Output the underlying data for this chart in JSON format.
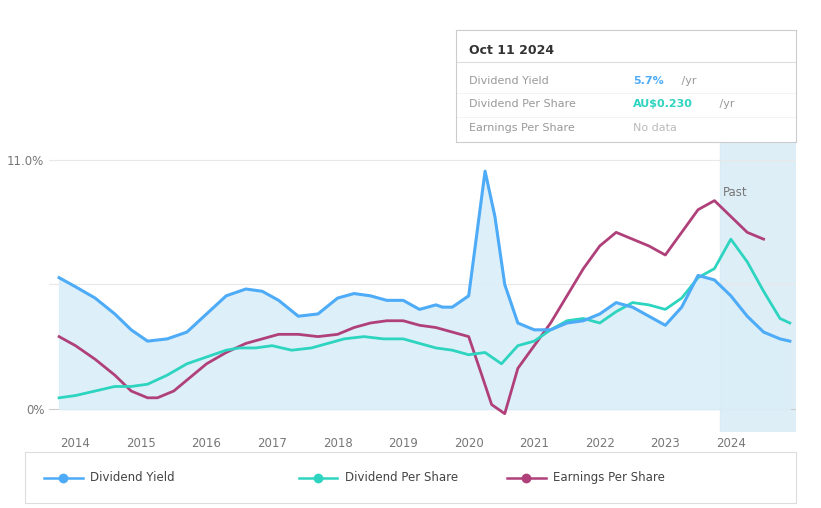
{
  "title": "Oct 11 2024",
  "tooltip_items": [
    {
      "label": "Dividend Yield",
      "value": "5.7%",
      "unit": " /yr",
      "color": "#4dabf7"
    },
    {
      "label": "Dividend Per Share",
      "value": "AU$0.230",
      "unit": " /yr",
      "color": "#2dd4bf"
    },
    {
      "label": "Earnings Per Share",
      "value": "No data",
      "unit": "",
      "color": "#aaaaaa"
    }
  ],
  "past_label": "Past",
  "past_start_x": 2023.83,
  "x_end": 2025.1,
  "background_color": "#ffffff",
  "fill_color": "#daeef8",
  "past_fill_color": "#d0e8f5",
  "grid_color": "#e8e8e8",
  "legend_items": [
    {
      "label": "Dividend Yield",
      "color": "#4dabf7"
    },
    {
      "label": "Dividend Per Share",
      "color": "#2dd4bf"
    },
    {
      "label": "Earnings Per Share",
      "color": "#b0407a"
    }
  ],
  "dividend_yield": {
    "x": [
      2013.75,
      2014.0,
      2014.3,
      2014.6,
      2014.85,
      2015.1,
      2015.4,
      2015.7,
      2016.0,
      2016.3,
      2016.6,
      2016.85,
      2017.1,
      2017.4,
      2017.7,
      2018.0,
      2018.25,
      2018.5,
      2018.75,
      2019.0,
      2019.25,
      2019.5,
      2019.6,
      2019.75,
      2020.0,
      2020.25,
      2020.4,
      2020.55,
      2020.75,
      2021.0,
      2021.25,
      2021.5,
      2021.75,
      2022.0,
      2022.25,
      2022.5,
      2022.75,
      2023.0,
      2023.25,
      2023.5,
      2023.75,
      2024.0,
      2024.25,
      2024.5,
      2024.75,
      2024.9
    ],
    "y": [
      5.8,
      5.4,
      4.9,
      4.2,
      3.5,
      3.0,
      3.1,
      3.4,
      4.2,
      5.0,
      5.3,
      5.2,
      4.8,
      4.1,
      4.2,
      4.9,
      5.1,
      5.0,
      4.8,
      4.8,
      4.4,
      4.6,
      4.5,
      4.5,
      5.0,
      10.5,
      8.5,
      5.5,
      3.8,
      3.5,
      3.5,
      3.8,
      3.9,
      4.2,
      4.7,
      4.5,
      4.1,
      3.7,
      4.5,
      5.9,
      5.7,
      5.0,
      4.1,
      3.4,
      3.1,
      3.0
    ]
  },
  "dividend_per_share": {
    "x": [
      2013.75,
      2014.0,
      2014.3,
      2014.6,
      2014.85,
      2015.1,
      2015.4,
      2015.7,
      2016.0,
      2016.3,
      2016.5,
      2016.75,
      2017.0,
      2017.3,
      2017.6,
      2017.85,
      2018.1,
      2018.4,
      2018.7,
      2019.0,
      2019.25,
      2019.5,
      2019.75,
      2020.0,
      2020.25,
      2020.5,
      2020.75,
      2021.0,
      2021.25,
      2021.5,
      2021.75,
      2022.0,
      2022.25,
      2022.5,
      2022.75,
      2023.0,
      2023.25,
      2023.5,
      2023.75,
      2024.0,
      2024.25,
      2024.5,
      2024.75,
      2024.9
    ],
    "y": [
      0.5,
      0.6,
      0.8,
      1.0,
      1.0,
      1.1,
      1.5,
      2.0,
      2.3,
      2.6,
      2.7,
      2.7,
      2.8,
      2.6,
      2.7,
      2.9,
      3.1,
      3.2,
      3.1,
      3.1,
      2.9,
      2.7,
      2.6,
      2.4,
      2.5,
      2.0,
      2.8,
      3.0,
      3.5,
      3.9,
      4.0,
      3.8,
      4.3,
      4.7,
      4.6,
      4.4,
      4.9,
      5.8,
      6.2,
      7.5,
      6.5,
      5.2,
      4.0,
      3.8
    ]
  },
  "earnings_per_share": {
    "x": [
      2013.75,
      2014.0,
      2014.3,
      2014.6,
      2014.85,
      2015.1,
      2015.25,
      2015.5,
      2015.75,
      2016.0,
      2016.3,
      2016.6,
      2016.85,
      2017.1,
      2017.4,
      2017.7,
      2018.0,
      2018.25,
      2018.5,
      2018.75,
      2019.0,
      2019.25,
      2019.5,
      2019.75,
      2020.0,
      2020.2,
      2020.35,
      2020.55,
      2020.75,
      2021.0,
      2021.25,
      2021.5,
      2021.75,
      2022.0,
      2022.25,
      2022.5,
      2022.75,
      2023.0,
      2023.25,
      2023.5,
      2023.75,
      2024.0,
      2024.25,
      2024.5
    ],
    "y": [
      3.2,
      2.8,
      2.2,
      1.5,
      0.8,
      0.5,
      0.5,
      0.8,
      1.4,
      2.0,
      2.5,
      2.9,
      3.1,
      3.3,
      3.3,
      3.2,
      3.3,
      3.6,
      3.8,
      3.9,
      3.9,
      3.7,
      3.6,
      3.4,
      3.2,
      1.5,
      0.2,
      -0.2,
      1.8,
      2.8,
      3.8,
      5.0,
      6.2,
      7.2,
      7.8,
      7.5,
      7.2,
      6.8,
      7.8,
      8.8,
      9.2,
      8.5,
      7.8,
      7.5
    ]
  },
  "ylim": [
    -1.0,
    12.0
  ],
  "xlim": [
    2013.6,
    2025.0
  ],
  "xticks": [
    2014,
    2015,
    2016,
    2017,
    2018,
    2019,
    2020,
    2021,
    2022,
    2023,
    2024
  ],
  "ytick_top_label": "11.0%",
  "ytick_top_value": 11.0,
  "ytick_bottom_label": "0%",
  "ytick_bottom_value": 0.0,
  "hline_mid": 5.5,
  "line_colors": {
    "dividend_yield": "#4dabf7",
    "dividend_per_share": "#2dd4bf",
    "earnings_per_share": "#b0407a"
  }
}
